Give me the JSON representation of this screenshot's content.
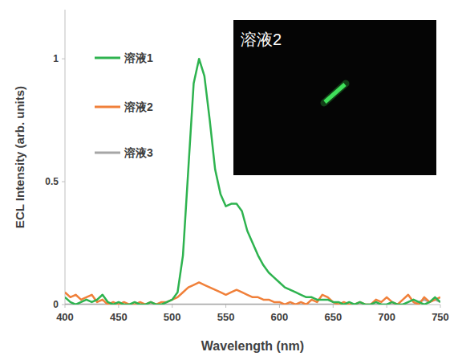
{
  "chart_data": {
    "type": "line",
    "xlabel": "Wavelength (nm)",
    "ylabel": "ECL Intensity (arb. units)",
    "annotations": [
      "溶液2"
    ],
    "x": [
      400,
      405,
      410,
      415,
      420,
      425,
      430,
      435,
      440,
      445,
      450,
      455,
      460,
      465,
      470,
      475,
      480,
      485,
      490,
      495,
      500,
      505,
      510,
      515,
      520,
      525,
      530,
      535,
      540,
      545,
      550,
      555,
      560,
      565,
      570,
      575,
      580,
      585,
      590,
      595,
      600,
      605,
      610,
      615,
      620,
      625,
      630,
      635,
      640,
      645,
      650,
      655,
      660,
      665,
      670,
      675,
      680,
      685,
      690,
      695,
      700,
      705,
      710,
      715,
      720,
      725,
      730,
      735,
      740,
      745,
      750
    ],
    "series": [
      {
        "name": "溶液1",
        "color": "#2eb34f",
        "values": [
          0.03,
          0.01,
          0.0,
          0.01,
          0.02,
          0.01,
          0.02,
          0.04,
          0.01,
          0.0,
          0.01,
          0.0,
          0.0,
          0.01,
          0.0,
          0.0,
          0.01,
          0.0,
          0.0,
          0.01,
          0.02,
          0.05,
          0.2,
          0.55,
          0.9,
          1.0,
          0.93,
          0.75,
          0.55,
          0.45,
          0.4,
          0.41,
          0.41,
          0.38,
          0.3,
          0.25,
          0.2,
          0.16,
          0.13,
          0.11,
          0.09,
          0.07,
          0.06,
          0.05,
          0.04,
          0.03,
          0.03,
          0.02,
          0.02,
          0.02,
          0.01,
          0.01,
          0.0,
          0.01,
          0.0,
          0.01,
          0.0,
          0.0,
          0.01,
          0.0,
          0.0,
          0.01,
          0.0,
          0.0,
          0.01,
          0.02,
          0.01,
          0.0,
          0.01,
          0.03,
          0.01
        ]
      },
      {
        "name": "溶液2",
        "color": "#f0803a",
        "values": [
          0.05,
          0.03,
          0.04,
          0.02,
          0.03,
          0.04,
          0.01,
          0.02,
          0.0,
          0.01,
          0.0,
          0.01,
          0.0,
          0.0,
          0.01,
          0.0,
          0.01,
          0.0,
          0.01,
          0.01,
          0.02,
          0.03,
          0.05,
          0.07,
          0.08,
          0.09,
          0.08,
          0.07,
          0.06,
          0.05,
          0.04,
          0.05,
          0.06,
          0.05,
          0.04,
          0.03,
          0.03,
          0.02,
          0.02,
          0.01,
          0.01,
          0.0,
          0.01,
          0.0,
          0.01,
          0.0,
          0.02,
          0.01,
          0.04,
          0.03,
          0.01,
          0.0,
          0.01,
          0.0,
          0.0,
          0.01,
          0.0,
          0.0,
          0.02,
          0.01,
          0.03,
          0.01,
          0.0,
          0.02,
          0.04,
          0.01,
          0.0,
          0.03,
          0.01,
          0.02,
          0.03
        ]
      },
      {
        "name": "溶液3",
        "color": "#a6a6a6",
        "values": [
          0.0,
          0.0,
          0.0,
          0.0,
          0.0,
          0.0,
          0.0,
          0.0,
          0.0,
          0.0,
          0.0,
          0.0,
          0.0,
          0.0,
          0.0,
          0.0,
          0.0,
          0.0,
          0.0,
          0.0,
          0.0,
          0.0,
          0.0,
          0.0,
          0.0,
          0.0,
          0.0,
          0.0,
          0.0,
          0.0,
          0.0,
          0.0,
          0.0,
          0.0,
          0.0,
          0.0,
          0.0,
          0.0,
          0.0,
          0.0,
          0.0,
          0.0,
          0.0,
          0.0,
          0.0,
          0.0,
          0.0,
          0.0,
          0.0,
          0.0,
          0.0,
          0.0,
          0.0,
          0.0,
          0.0,
          0.0,
          0.0,
          0.0,
          0.0,
          0.0,
          0.0,
          0.0,
          0.0,
          0.0,
          0.0,
          0.0,
          0.01,
          0.02,
          0.01,
          0.02,
          0.01
        ]
      }
    ],
    "xlim": [
      400,
      750
    ],
    "xticks": [
      400,
      450,
      500,
      550,
      600,
      650,
      700,
      750
    ],
    "ylim": [
      0,
      1.2
    ],
    "yticks": [
      0,
      0.5,
      1
    ],
    "grid": false,
    "legend": "upper left"
  }
}
